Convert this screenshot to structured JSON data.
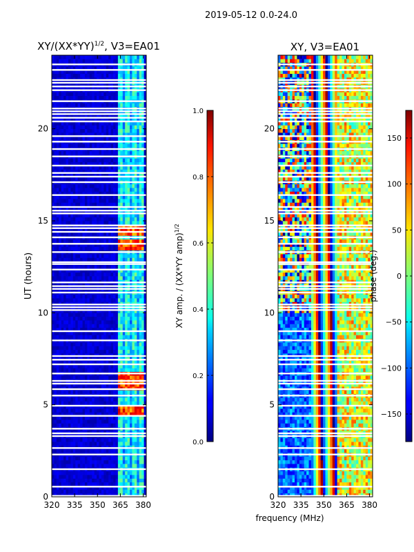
{
  "suptitle": "2019-05-12 0.0-24.0",
  "shared_xlabel": "frequency (MHz)",
  "chart_data": [
    {
      "type": "heatmap",
      "title_main": "XY/(XX*YY)",
      "title_sup": "1/2",
      "title_tail": ", V3=EA01",
      "ylabel": "UT (hours)",
      "xlim": [
        320,
        382
      ],
      "ylim": [
        0,
        24
      ],
      "xticks": [
        "320",
        "335",
        "350",
        "365",
        "380"
      ],
      "xtick_values": [
        320,
        335,
        350,
        365,
        380
      ],
      "yticks": [
        "0",
        "5",
        "10",
        "15",
        "20"
      ],
      "ytick_values": [
        0,
        5,
        10,
        15,
        20
      ],
      "colorbar": {
        "label_main": "XY amp. / (XX*YY amp)",
        "label_sup": "1/2",
        "range": [
          0.0,
          1.0
        ],
        "ticks": [
          "0.0",
          "0.2",
          "0.4",
          "0.6",
          "0.8",
          "1.0"
        ],
        "tick_values": [
          0.0,
          0.2,
          0.4,
          0.6,
          0.8,
          1.0
        ]
      },
      "bright_channel_band_mhz": [
        363,
        381
      ],
      "hot_spots_ut_hours": [
        4.7,
        6.0,
        6.5,
        13.7,
        14.5
      ]
    },
    {
      "type": "heatmap",
      "title": "XY, V3=EA01",
      "xlim": [
        320,
        382
      ],
      "ylim": [
        0,
        24
      ],
      "xticks": [
        "320",
        "335",
        "350",
        "365",
        "380"
      ],
      "xtick_values": [
        320,
        335,
        350,
        365,
        380
      ],
      "yticks": [
        "0",
        "5",
        "10",
        "15",
        "20"
      ],
      "ytick_values": [
        0,
        5,
        10,
        15,
        20
      ],
      "colorbar": {
        "label": "phase (deg.)",
        "range": [
          -180,
          180
        ],
        "ticks": [
          "−150",
          "−100",
          "−50",
          "0",
          "50",
          "100",
          "150"
        ],
        "tick_values": [
          -150,
          -100,
          -50,
          0,
          50,
          100,
          150
        ]
      },
      "phase_ramp_channel_mhz": [
        341,
        359
      ]
    }
  ],
  "flagged_ut_hours": [
    0.05,
    0.55,
    1.5,
    2.3,
    2.65,
    3.3,
    3.45,
    3.7,
    4.4,
    4.95,
    5.5,
    5.85,
    6.15,
    6.3,
    6.7,
    7.2,
    7.45,
    7.65,
    8.5,
    9.0,
    10.15,
    10.3,
    10.45,
    11.1,
    11.3,
    11.45,
    11.65,
    12.35,
    12.65,
    12.75,
    13.3,
    13.75,
    14.1,
    14.4,
    14.6,
    14.75,
    15.4,
    15.55,
    15.75,
    16.4,
    17.1,
    17.4,
    17.6,
    18.0,
    18.5,
    18.9,
    19.3,
    19.6,
    20.4,
    20.6,
    20.8,
    20.95,
    21.1,
    21.5,
    22.1,
    22.3,
    22.5,
    22.65,
    23.2,
    23.5
  ]
}
